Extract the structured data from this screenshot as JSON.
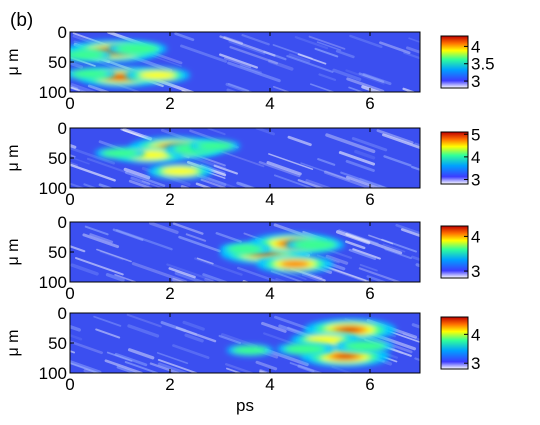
{
  "figure": {
    "panel_label": "(b)"
  },
  "chart_data": [
    {
      "type": "heatmap",
      "x_ticks": [
        "0",
        "2",
        "4",
        "6"
      ],
      "xlim": [
        0,
        7
      ],
      "y_ticks": [
        "0",
        "50",
        "100"
      ],
      "ylim": [
        0,
        100
      ],
      "ylabel": "μ m",
      "colorbar": {
        "range": [
          2.8,
          4.3
        ],
        "ticks": [
          "4",
          "3.5",
          "3"
        ],
        "tick_values": [
          4,
          3.5,
          3
        ]
      },
      "hot_spots": [
        {
          "x": 0.85,
          "y": 32,
          "level": 1.0
        },
        {
          "x": 1.35,
          "y": 28,
          "level": 0.45
        },
        {
          "x": 0.3,
          "y": 38,
          "level": 0.35
        },
        {
          "x": 1.0,
          "y": 75,
          "level": 0.85
        },
        {
          "x": 1.75,
          "y": 72,
          "level": 0.55
        },
        {
          "x": 0.4,
          "y": 70,
          "level": 0.3
        }
      ]
    },
    {
      "type": "heatmap",
      "x_ticks": [
        "0",
        "2",
        "4",
        "6"
      ],
      "xlim": [
        0,
        7
      ],
      "y_ticks": [
        "0",
        "50",
        "100"
      ],
      "ylim": [
        0,
        100
      ],
      "ylabel": "μ m",
      "colorbar": {
        "range": [
          2.8,
          5.1
        ],
        "ticks": [
          "5",
          "4",
          "3"
        ],
        "tick_values": [
          5,
          4,
          3
        ]
      },
      "hot_spots": [
        {
          "x": 2.1,
          "y": 33,
          "level": 1.0
        },
        {
          "x": 1.6,
          "y": 45,
          "level": 0.6
        },
        {
          "x": 2.5,
          "y": 35,
          "level": 0.45
        },
        {
          "x": 1.0,
          "y": 42,
          "level": 0.3
        },
        {
          "x": 2.2,
          "y": 72,
          "level": 0.55
        },
        {
          "x": 2.9,
          "y": 30,
          "level": 0.3
        }
      ]
    },
    {
      "type": "heatmap",
      "x_ticks": [
        "0",
        "2",
        "4",
        "6"
      ],
      "xlim": [
        0,
        7
      ],
      "y_ticks": [
        "0",
        "50",
        "100"
      ],
      "ylim": [
        0,
        100
      ],
      "ylabel": "μ m",
      "colorbar": {
        "range": [
          2.8,
          4.3
        ],
        "ticks": [
          "4",
          "3"
        ],
        "tick_values": [
          4,
          3
        ]
      },
      "hot_spots": [
        {
          "x": 3.9,
          "y": 52,
          "level": 0.95
        },
        {
          "x": 4.45,
          "y": 36,
          "level": 0.9
        },
        {
          "x": 4.5,
          "y": 70,
          "level": 0.75
        },
        {
          "x": 4.9,
          "y": 38,
          "level": 0.45
        },
        {
          "x": 3.5,
          "y": 45,
          "level": 0.3
        }
      ]
    },
    {
      "type": "heatmap",
      "x_ticks": [
        "0",
        "2",
        "4",
        "6"
      ],
      "xlim": [
        0,
        7
      ],
      "y_ticks": [
        "0",
        "50",
        "100"
      ],
      "ylim": [
        0,
        100
      ],
      "ylabel": "μ m",
      "xlabel": "ps",
      "colorbar": {
        "range": [
          2.8,
          4.6
        ],
        "ticks": [
          "4",
          "3"
        ],
        "tick_values": [
          4,
          3
        ]
      },
      "hot_spots": [
        {
          "x": 5.6,
          "y": 28,
          "level": 1.0
        },
        {
          "x": 5.5,
          "y": 72,
          "level": 0.95
        },
        {
          "x": 5.1,
          "y": 45,
          "level": 0.6
        },
        {
          "x": 4.7,
          "y": 60,
          "level": 0.4
        },
        {
          "x": 3.6,
          "y": 62,
          "level": 0.25
        },
        {
          "x": 5.9,
          "y": 55,
          "level": 0.4
        }
      ]
    }
  ]
}
